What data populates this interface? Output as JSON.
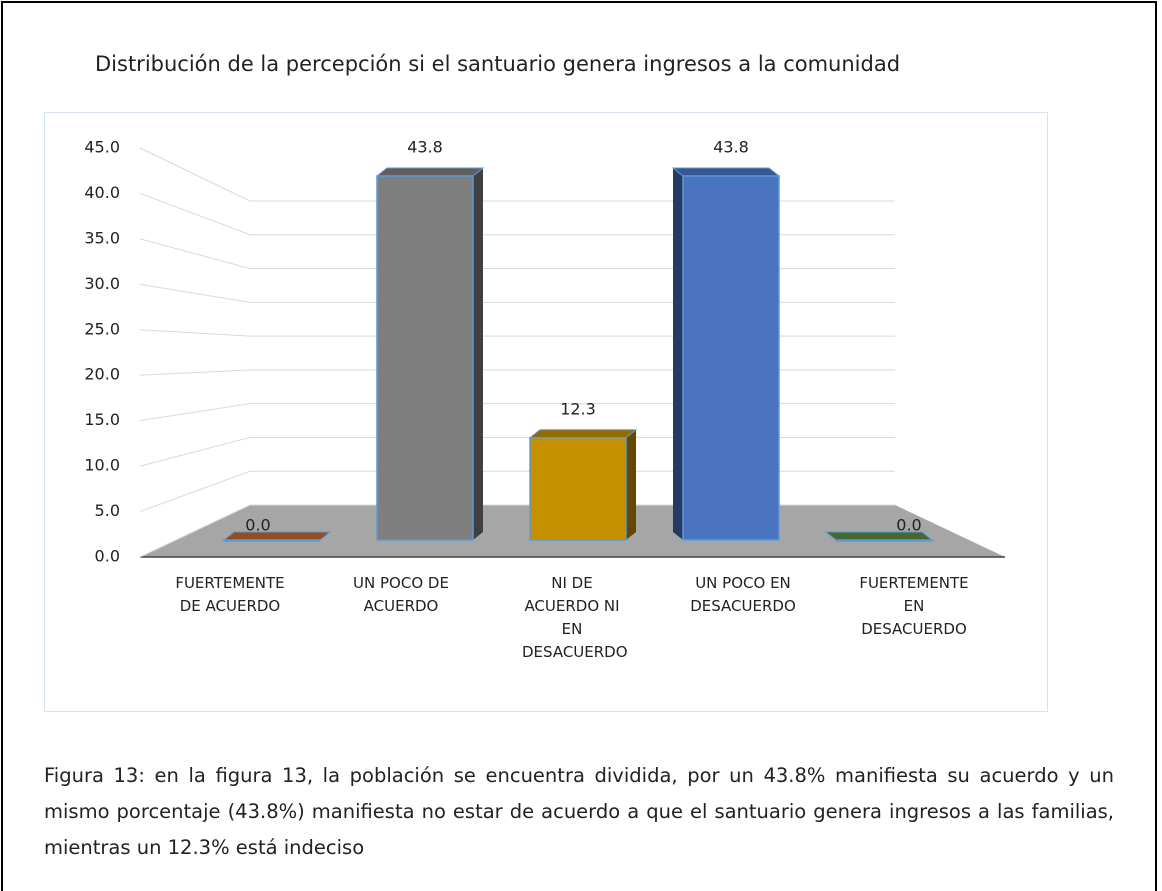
{
  "chart_data": {
    "type": "bar3d",
    "title": "Distribución de la percepción si el santuario genera ingresos a la comunidad",
    "categories": [
      "FUERTEMENTE DE ACUERDO",
      "UN POCO DE ACUERDO",
      "NI DE ACUERDO NI EN DESACUERDO",
      "UN POCO EN DESACUERDO",
      "FUERTEMENTE EN DESACUERDO"
    ],
    "values": [
      0.0,
      43.8,
      12.3,
      43.8,
      0.0
    ],
    "value_labels": [
      "0.0",
      "43.8",
      "12.3",
      "43.8",
      "0.0"
    ],
    "colors": [
      "#c5672e",
      "#7f7f7f",
      "#c49000",
      "#4a74c0",
      "#5f8a3e"
    ],
    "ylim": [
      0,
      45
    ],
    "yticks": [
      {
        "value": 0,
        "label": "0.0"
      },
      {
        "value": 5,
        "label": "5.0"
      },
      {
        "value": 10,
        "label": "10.0"
      },
      {
        "value": 15,
        "label": "15.0"
      },
      {
        "value": 20,
        "label": "20.0"
      },
      {
        "value": 25,
        "label": "25.0"
      },
      {
        "value": 30,
        "label": "30.0"
      },
      {
        "value": 35,
        "label": "35.0"
      },
      {
        "value": 40,
        "label": "40.0"
      },
      {
        "value": 45,
        "label": "45.0"
      }
    ],
    "grid": true
  },
  "caption": "Figura 13: en la figura 13, la población se encuentra dividida, por un 43.8% manifiesta su acuerdo y un mismo porcentaje (43.8%) manifiesta no estar de acuerdo a que el santuario genera ingresos a las familias, mientras un 12.3% está indeciso"
}
